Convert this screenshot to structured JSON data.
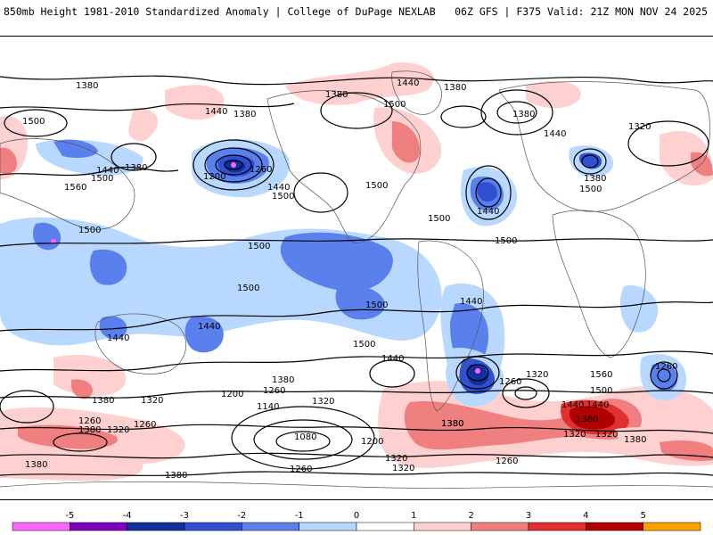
{
  "header": {
    "left_title": "850mb Height 1981-2010 Standardized Anomaly | College of DuPage NEXLAB",
    "right_title": "06Z GFS | F375 Valid: 21Z MON NOV 24 2025"
  },
  "contour_labels": [
    "1380",
    "1380",
    "1440",
    "1380",
    "1440",
    "1500",
    "1380",
    "1380",
    "1440",
    "1500",
    "1320",
    "1440",
    "1380",
    "1560",
    "1500",
    "1380",
    "1260",
    "1200",
    "1440",
    "1500",
    "1500",
    "1500",
    "1440",
    "1500",
    "1500",
    "1500",
    "1500",
    "1500",
    "1500",
    "1440",
    "1440",
    "1440",
    "1500",
    "1440",
    "1320",
    "1260",
    "1560",
    "1500",
    "1440",
    "1380",
    "1260",
    "1380",
    "1320",
    "1200",
    "1260",
    "1140",
    "1320",
    "1080",
    "1200",
    "1260",
    "1380",
    "1320",
    "1260",
    "1320",
    "1380",
    "1320",
    "1260",
    "1440",
    "1380",
    "1320",
    "1380",
    "1320",
    "1380",
    "1380",
    "1380",
    "1260"
  ],
  "legend": {
    "ticks": [
      "-5",
      "-4",
      "-3",
      "-2",
      "-1",
      "0",
      "1",
      "2",
      "3",
      "4",
      "5"
    ],
    "colors": [
      "#ff66ff",
      "#8000c0",
      "#1030a0",
      "#3050d0",
      "#5a80ee",
      "#b8d8ff",
      "#ffffff",
      "#ffd0d0",
      "#f08080",
      "#e03030",
      "#b00000",
      "#ffa000"
    ]
  }
}
